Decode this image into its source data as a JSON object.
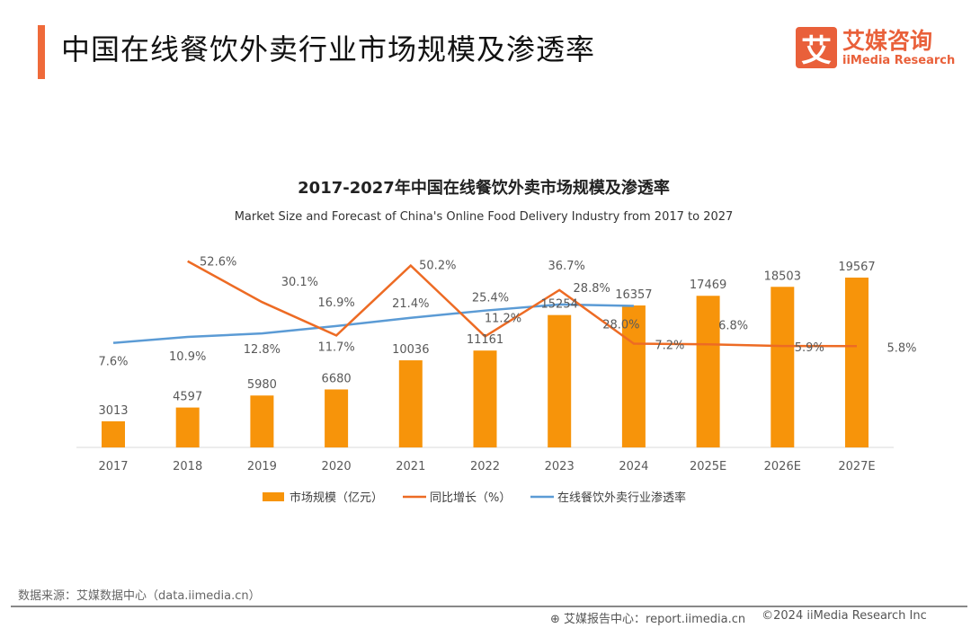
{
  "header": {
    "title": "中国在线餐饮外卖行业市场规模及渗透率"
  },
  "logo": {
    "mark": "艾",
    "cn": "艾媒咨询",
    "en": "iiMedia Research"
  },
  "chart_data": {
    "type": "bar+line",
    "title": "2017-2027年中国在线餐饮外卖市场规模及渗透率",
    "subtitle": "Market Size and Forecast of China's Online Food Delivery Industry from 2017 to 2027",
    "categories": [
      "2017",
      "2018",
      "2019",
      "2020",
      "2021",
      "2022",
      "2023",
      "2024",
      "2025E",
      "2026E",
      "2027E"
    ],
    "series": [
      {
        "name": "市场规模（亿元）",
        "type": "bar",
        "color": "#f7940a",
        "values": [
          3013,
          4597,
          5980,
          6680,
          10036,
          11161,
          15254,
          16357,
          17469,
          18503,
          19567
        ]
      },
      {
        "name": "同比增长（%）",
        "type": "line",
        "color": "#ed6b24",
        "values": [
          null,
          52.6,
          30.1,
          11.7,
          50.2,
          11.2,
          36.7,
          7.2,
          6.8,
          5.9,
          5.8
        ]
      },
      {
        "name": "在线餐饮外卖行业渗透率",
        "type": "line",
        "color": "#5b9bd5",
        "values": [
          7.6,
          10.9,
          12.8,
          16.9,
          21.4,
          25.4,
          28.8,
          28.0,
          null,
          null,
          null
        ]
      }
    ],
    "legend": "bottom",
    "grid": false
  },
  "footer": {
    "source": "数据来源：艾媒数据中心（data.iimedia.cn）",
    "report": "艾媒报告中心：report.iimedia.cn",
    "copyright": "©2024  iiMedia Research  Inc"
  }
}
